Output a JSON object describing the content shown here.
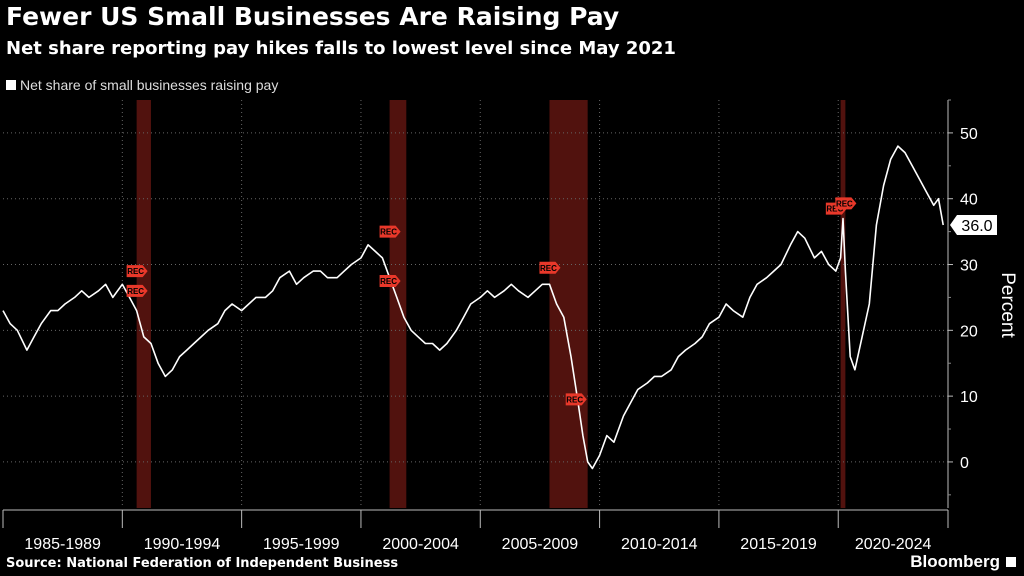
{
  "title": "Fewer US Small Businesses Are Raising Pay",
  "subtitle": "Net share reporting pay hikes falls to lowest level since May 2021",
  "legend_label": "Net share of small businesses raising pay",
  "source": "Source: National Federation of Independent Business",
  "brand": "Bloomberg",
  "colors": {
    "background": "#000000",
    "line": "#ffffff",
    "recession": "#5a1410",
    "rec_marker": "#e8382a",
    "grid": "#666666"
  },
  "chart_data": {
    "type": "line",
    "title": "Fewer US Small Businesses Are Raising Pay",
    "ylabel": "Percent",
    "xlabel": "",
    "ylim": [
      -7,
      55
    ],
    "xlim": [
      1985.0,
      2024.6
    ],
    "y_ticks": [
      0,
      10,
      20,
      30,
      40,
      50
    ],
    "x_tick_labels": [
      "1985-1989",
      "1990-1994",
      "1995-1999",
      "2000-2004",
      "2005-2009",
      "2010-2014",
      "2015-2019",
      "2020-2024"
    ],
    "x_tick_positions": [
      1985,
      1990,
      1995,
      2000,
      2005,
      2010,
      2015,
      2020,
      2025
    ],
    "last_value_label": "36.0",
    "rec_label": "REC",
    "recessions": [
      {
        "start": 1990.6,
        "end": 1991.2
      },
      {
        "start": 2001.2,
        "end": 2001.9
      },
      {
        "start": 2007.9,
        "end": 2009.5
      },
      {
        "start": 2020.1,
        "end": 2020.3
      }
    ],
    "rec_markers": [
      {
        "x": 1990.6,
        "y": 29
      },
      {
        "x": 1990.6,
        "y": 26
      },
      {
        "x": 2001.2,
        "y": 35
      },
      {
        "x": 2001.2,
        "y": 27.5
      },
      {
        "x": 2007.9,
        "y": 29.5
      },
      {
        "x": 2009.0,
        "y": 9.5
      },
      {
        "x": 2019.9,
        "y": 38.5
      },
      {
        "x": 2020.3,
        "y": 39.3
      }
    ],
    "series": [
      {
        "name": "Net share of small businesses raising pay",
        "x": [
          1985.0,
          1985.3,
          1985.6,
          1986.0,
          1986.3,
          1986.6,
          1987.0,
          1987.3,
          1987.6,
          1988.0,
          1988.3,
          1988.6,
          1989.0,
          1989.3,
          1989.6,
          1990.0,
          1990.3,
          1990.6,
          1990.9,
          1991.2,
          1991.5,
          1991.8,
          1992.1,
          1992.4,
          1992.7,
          1993.0,
          1993.3,
          1993.6,
          1994.0,
          1994.3,
          1994.6,
          1995.0,
          1995.3,
          1995.6,
          1996.0,
          1996.3,
          1996.6,
          1997.0,
          1997.3,
          1997.6,
          1998.0,
          1998.3,
          1998.6,
          1999.0,
          1999.3,
          1999.6,
          2000.0,
          2000.3,
          2000.6,
          2000.9,
          2001.2,
          2001.5,
          2001.8,
          2002.1,
          2002.4,
          2002.7,
          2003.0,
          2003.3,
          2003.6,
          2004.0,
          2004.3,
          2004.6,
          2005.0,
          2005.3,
          2005.6,
          2006.0,
          2006.3,
          2006.6,
          2007.0,
          2007.3,
          2007.6,
          2007.9,
          2008.2,
          2008.5,
          2008.8,
          2009.1,
          2009.3,
          2009.5,
          2009.7,
          2010.0,
          2010.3,
          2010.6,
          2011.0,
          2011.3,
          2011.6,
          2012.0,
          2012.3,
          2012.6,
          2013.0,
          2013.3,
          2013.6,
          2014.0,
          2014.3,
          2014.6,
          2015.0,
          2015.3,
          2015.6,
          2016.0,
          2016.3,
          2016.6,
          2017.0,
          2017.3,
          2017.6,
          2018.0,
          2018.3,
          2018.6,
          2019.0,
          2019.3,
          2019.6,
          2019.9,
          2020.1,
          2020.2,
          2020.3,
          2020.5,
          2020.7,
          2021.0,
          2021.3,
          2021.6,
          2021.9,
          2022.2,
          2022.5,
          2022.8,
          2023.1,
          2023.4,
          2023.7,
          2024.0,
          2024.2,
          2024.4
        ],
        "y": [
          23,
          21,
          20,
          17,
          19,
          21,
          23,
          23,
          24,
          25,
          26,
          25,
          26,
          27,
          25,
          27,
          25,
          23,
          19,
          18,
          15,
          13,
          14,
          16,
          17,
          18,
          19,
          20,
          21,
          23,
          24,
          23,
          24,
          25,
          25,
          26,
          28,
          29,
          27,
          28,
          29,
          29,
          28,
          28,
          29,
          30,
          31,
          33,
          32,
          31,
          28,
          25,
          22,
          20,
          19,
          18,
          18,
          17,
          18,
          20,
          22,
          24,
          25,
          26,
          25,
          26,
          27,
          26,
          25,
          26,
          27,
          27,
          24,
          22,
          16,
          9,
          4,
          0,
          -1,
          1,
          4,
          3,
          7,
          9,
          11,
          12,
          13,
          13,
          14,
          16,
          17,
          18,
          19,
          21,
          22,
          24,
          23,
          22,
          25,
          27,
          28,
          29,
          30,
          33,
          35,
          34,
          31,
          32,
          30,
          29,
          31,
          37,
          29,
          16,
          14,
          19,
          24,
          36,
          42,
          46,
          48,
          47,
          45,
          43,
          41,
          39,
          40,
          36
        ]
      }
    ]
  }
}
